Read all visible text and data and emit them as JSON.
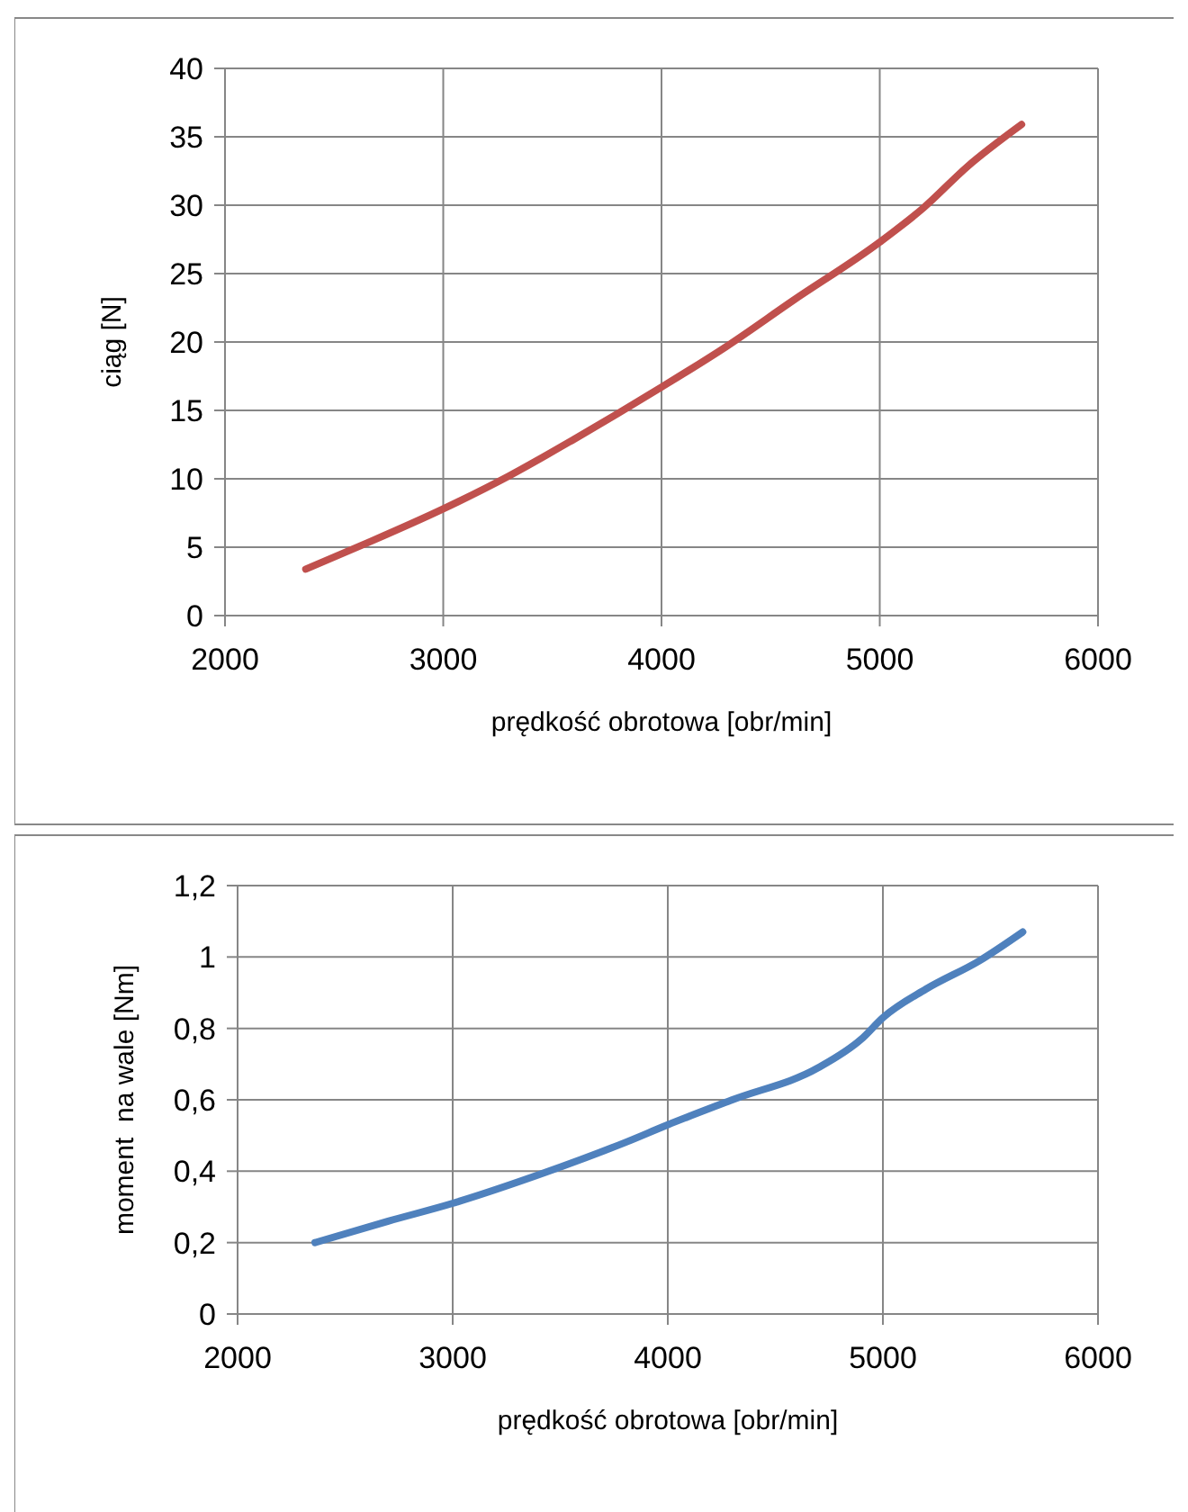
{
  "chart_data": [
    {
      "type": "line",
      "xlabel": "prędkość obrotowa [obr/min]",
      "ylabel": "ciąg [N]",
      "x": [
        2370,
        2650,
        3000,
        3300,
        3600,
        4000,
        4300,
        4600,
        5000,
        5200,
        5400,
        5650
      ],
      "series": [
        {
          "color": "#c0504d",
          "values": [
            3.4,
            5.3,
            7.8,
            10.2,
            12.9,
            16.7,
            19.7,
            23,
            27.3,
            29.8,
            32.8,
            35.9
          ]
        }
      ],
      "xlim": [
        2000,
        6000
      ],
      "xticks": [
        2000,
        3000,
        4000,
        5000,
        6000
      ],
      "ylim": [
        0,
        40
      ],
      "yticks": [
        0,
        5,
        10,
        15,
        20,
        25,
        30,
        35,
        40
      ],
      "grid": true,
      "marker": "none",
      "line_style": "solid"
    },
    {
      "type": "line",
      "xlabel": "prędkość obrotowa [obr/min]",
      "ylabel": "moment  na wale [Nm]",
      "x": [
        2360,
        2700,
        3000,
        3400,
        3800,
        4000,
        4300,
        4700,
        4900,
        5000,
        5200,
        5450,
        5650
      ],
      "series": [
        {
          "color": "#4f81bd",
          "values": [
            0.2,
            0.26,
            0.31,
            0.39,
            0.48,
            0.53,
            0.6,
            0.69,
            0.77,
            0.83,
            0.91,
            0.99,
            1.07
          ]
        }
      ],
      "xlim": [
        2000,
        6000
      ],
      "xticks": [
        2000,
        3000,
        4000,
        5000,
        6000
      ],
      "ylim": [
        0,
        1.2
      ],
      "yticks": [
        0,
        {
          "value": 0.2,
          "label": "0,2"
        },
        {
          "value": 0.4,
          "label": "0,4"
        },
        {
          "value": 0.6,
          "label": "0,6"
        },
        {
          "value": 0.8,
          "label": "0,8"
        },
        1,
        {
          "value": 1.2,
          "label": "1,2"
        }
      ],
      "grid": true,
      "marker": "none",
      "line_style": "solid"
    }
  ]
}
